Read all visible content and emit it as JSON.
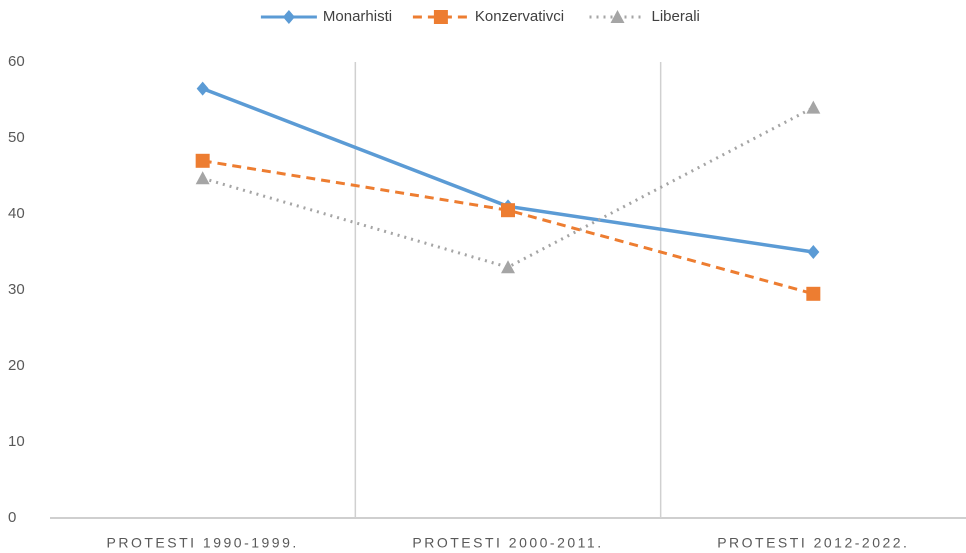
{
  "chart_data": {
    "type": "line",
    "categories": [
      "PROTESTI 1990-1999.",
      "PROTESTI 2000-2011.",
      "PROTESTI 2012-2022."
    ],
    "series": [
      {
        "name": "Monarhisti",
        "color": "#5b9bd5",
        "dash": "solid",
        "marker": "diamond",
        "values": [
          56.5,
          41,
          35
        ]
      },
      {
        "name": "Konzervativci",
        "color": "#ed7d31",
        "dash": "dashed",
        "marker": "square",
        "values": [
          47,
          40.5,
          29.5
        ]
      },
      {
        "name": "Liberali",
        "color": "#a5a5a5",
        "dash": "dotted",
        "marker": "triangle",
        "values": [
          44.7,
          33,
          54
        ]
      }
    ],
    "ylim": [
      0,
      60
    ],
    "yticks": [
      0,
      10,
      20,
      30,
      40,
      50,
      60
    ],
    "category_separators": true,
    "legend": "top"
  }
}
